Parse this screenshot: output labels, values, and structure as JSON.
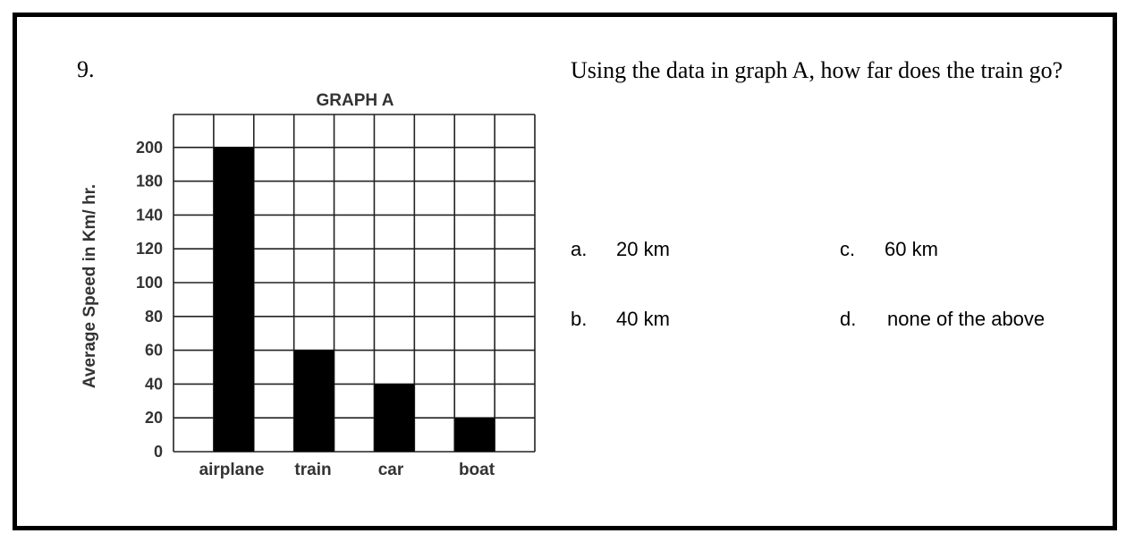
{
  "question": {
    "number": "9.",
    "text": "Using the data in graph A, how far does the train go?"
  },
  "options": [
    {
      "letter": "a.",
      "text": "20 km"
    },
    {
      "letter": "b.",
      "text": "40 km"
    },
    {
      "letter": "c.",
      "text": "60 km"
    },
    {
      "letter": "d.",
      "text": "none of the above"
    }
  ],
  "chart_data": {
    "type": "bar",
    "title": "GRAPH A",
    "ylabel": "Average Speed in Km/ hr.",
    "xlabel": "",
    "categories": [
      "airplane",
      "train",
      "car",
      "boat"
    ],
    "values": [
      200,
      60,
      40,
      20
    ],
    "yticks": [
      0,
      20,
      40,
      60,
      80,
      100,
      120,
      140,
      180,
      200
    ],
    "ylim": [
      0,
      200
    ],
    "bar_color": "#000000",
    "grid": true
  }
}
